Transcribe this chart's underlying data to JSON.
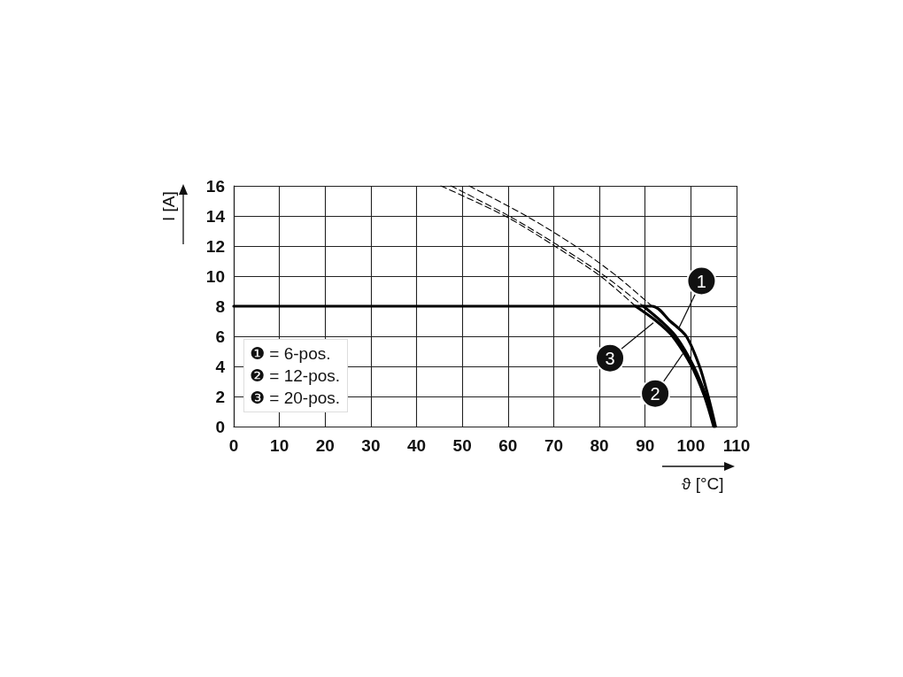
{
  "chart_data": {
    "type": "line",
    "xlabel": "ϑ [°C]",
    "ylabel": "I [A]",
    "xlim": [
      0,
      110
    ],
    "xticks": [
      0,
      10,
      20,
      30,
      40,
      50,
      60,
      70,
      80,
      90,
      100,
      110
    ],
    "ylim": [
      0,
      16
    ],
    "yticks": [
      0,
      2,
      4,
      6,
      8,
      10,
      12,
      14,
      16
    ],
    "grid": true,
    "marker": "none",
    "series": [
      {
        "color": "#000000",
        "line_style": "solid",
        "x": [
          0,
          91.5,
          95.5,
          99,
          101.9,
          103.8,
          105.4
        ],
        "values": [
          8,
          8,
          7,
          6,
          4,
          2,
          0
        ]
      },
      {
        "color": "#000000",
        "line_style": "solid",
        "x": [
          89.6,
          93.5,
          96.7,
          100.6,
          103.3,
          105.2
        ],
        "values": [
          8,
          7,
          6,
          4,
          2,
          0
        ]
      },
      {
        "color": "#000000",
        "line_style": "solid",
        "x": [
          87.9,
          92.5,
          96,
          100.2,
          103,
          105
        ],
        "values": [
          8,
          7,
          6,
          4,
          2,
          0
        ]
      },
      {
        "color": "#000000",
        "line_style": "dashed",
        "x": [
          51.5,
          64,
          74.7,
          83.8,
          91.5
        ],
        "values": [
          16,
          14,
          12,
          10,
          8
        ]
      },
      {
        "color": "#000000",
        "line_style": "dashed",
        "x": [
          47.5,
          60.2,
          71.2,
          81.2,
          89.6
        ],
        "values": [
          16,
          14,
          12,
          10,
          8
        ]
      },
      {
        "color": "#000000",
        "line_style": "dashed",
        "x": [
          45.3,
          59.3,
          70.2,
          80.2,
          87.9
        ],
        "values": [
          16,
          14,
          12,
          10,
          8
        ]
      }
    ],
    "annotations": [
      "❶ = 6-pos.",
      "❷ = 12-pos.",
      "❸ = 20-pos.",
      {
        "text": "1",
        "x": 97.3,
        "y": 6.5
      },
      {
        "text": "2",
        "x": 98.4,
        "y": 4.9
      },
      {
        "text": "3",
        "x": 91.8,
        "y": 6.9
      }
    ]
  }
}
